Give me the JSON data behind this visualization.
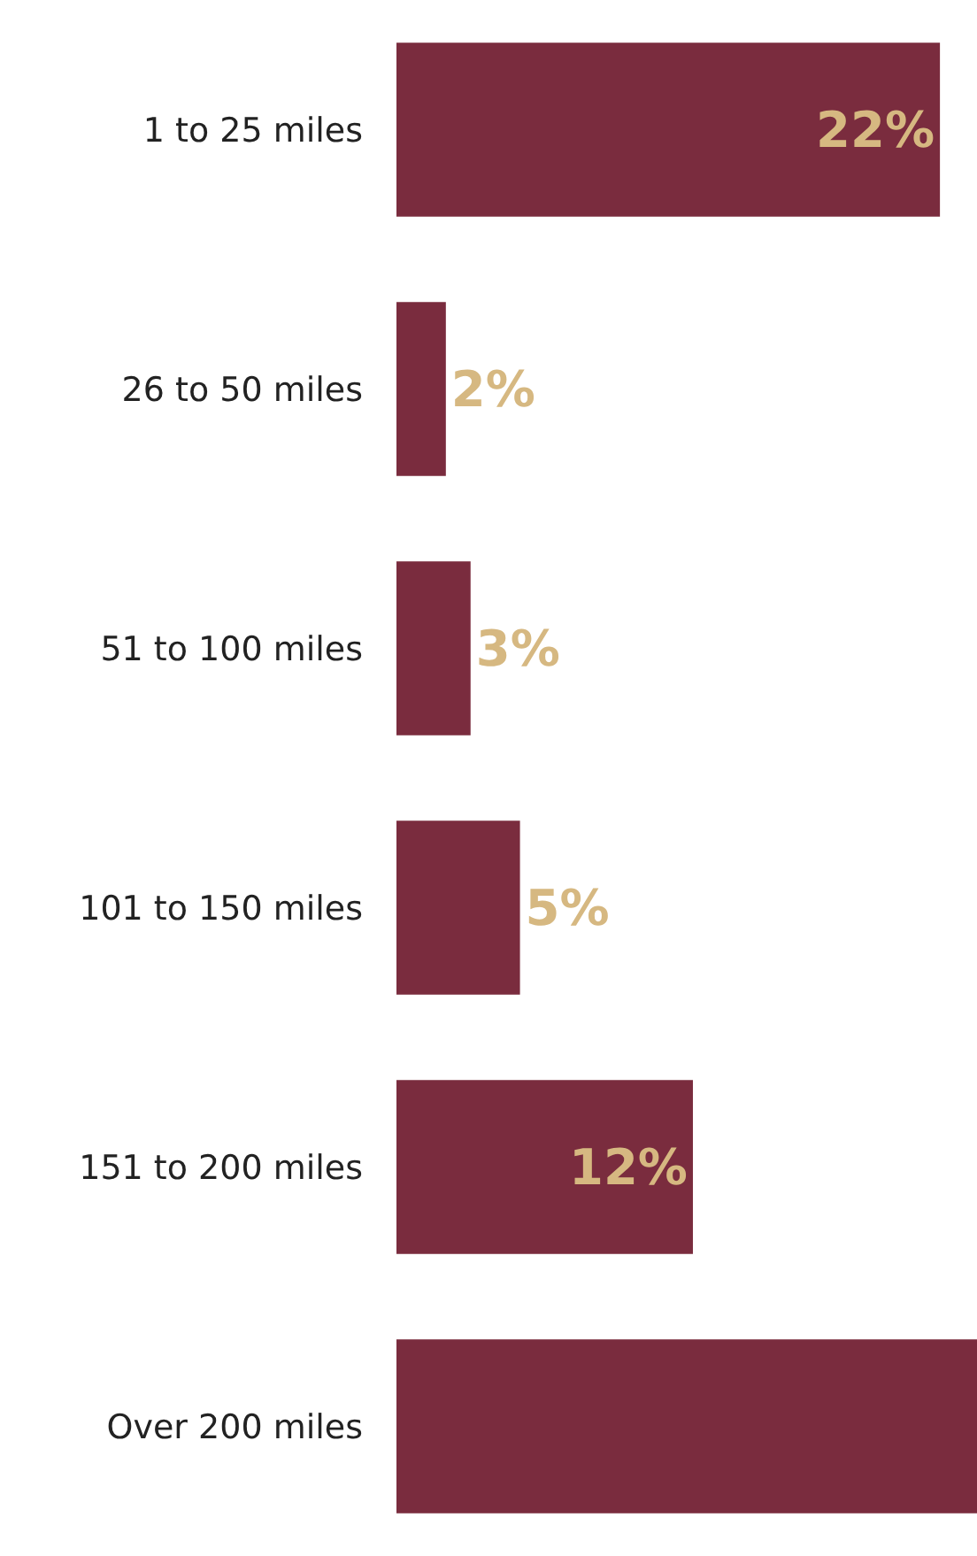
{
  "chart_data": {
    "type": "bar",
    "orientation": "horizontal",
    "categories": [
      "1 to 25 miles",
      "26 to 50 miles",
      "51 to 100 miles",
      "101 to 150 miles",
      "151 to 200 miles",
      "Over 200 miles"
    ],
    "values": [
      22,
      2,
      3,
      5,
      12,
      23.5
    ],
    "value_labels": [
      "22%",
      "2%",
      "3%",
      "5%",
      "12%",
      null
    ],
    "color": "#7a2c3e",
    "xlim": [
      0,
      23.5
    ],
    "legend": false,
    "tick_labels": "y"
  }
}
